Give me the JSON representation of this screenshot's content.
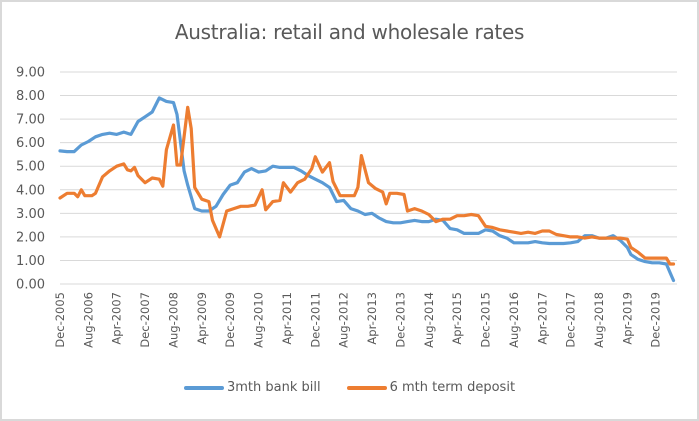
{
  "chart_data": {
    "type": "line",
    "title": "Australia: retail and wholesale rates",
    "xlabel": "",
    "ylabel": "",
    "ylim": [
      0,
      9
    ],
    "yticks": [
      "0.00",
      "1.00",
      "2.00",
      "3.00",
      "4.00",
      "5.00",
      "6.00",
      "7.00",
      "8.00",
      "9.00"
    ],
    "xticks": [
      "Dec-2005",
      "Aug-2006",
      "Apr-2007",
      "Dec-2007",
      "Aug-2008",
      "Apr-2009",
      "Dec-2009",
      "Aug-2010",
      "Apr-2011",
      "Dec-2011",
      "Aug-2012",
      "Apr-2013",
      "Dec-2013",
      "Aug-2014",
      "Apr-2015",
      "Dec-2015",
      "Aug-2016",
      "Apr-2017",
      "Dec-2017",
      "Aug-2018",
      "Apr-2019",
      "Dec-2019"
    ],
    "grid": true,
    "legend_position": "bottom",
    "x_start": "Dec-2005",
    "x_end": "Jun-2020",
    "frequency": "monthly (sampled)",
    "series": [
      {
        "name": "3mth bank bill",
        "color": "#5b9bd5",
        "points": [
          [
            "Dec-2005",
            5.65
          ],
          [
            "Feb-2006",
            5.62
          ],
          [
            "Apr-2006",
            5.62
          ],
          [
            "Jun-2006",
            5.9
          ],
          [
            "Aug-2006",
            6.05
          ],
          [
            "Oct-2006",
            6.25
          ],
          [
            "Dec-2006",
            6.35
          ],
          [
            "Feb-2007",
            6.4
          ],
          [
            "Apr-2007",
            6.35
          ],
          [
            "Jun-2007",
            6.45
          ],
          [
            "Aug-2007",
            6.35
          ],
          [
            "Oct-2007",
            6.9
          ],
          [
            "Dec-2007",
            7.1
          ],
          [
            "Feb-2008",
            7.3
          ],
          [
            "Apr-2008",
            7.9
          ],
          [
            "Jun-2008",
            7.75
          ],
          [
            "Aug-2008",
            7.7
          ],
          [
            "Sep-2008",
            7.2
          ],
          [
            "Oct-2008",
            6.0
          ],
          [
            "Nov-2008",
            4.8
          ],
          [
            "Dec-2008",
            4.2
          ],
          [
            "Feb-2009",
            3.2
          ],
          [
            "Apr-2009",
            3.1
          ],
          [
            "Jun-2009",
            3.1
          ],
          [
            "Aug-2009",
            3.3
          ],
          [
            "Oct-2009",
            3.8
          ],
          [
            "Dec-2009",
            4.2
          ],
          [
            "Feb-2010",
            4.3
          ],
          [
            "Apr-2010",
            4.75
          ],
          [
            "Jun-2010",
            4.9
          ],
          [
            "Aug-2010",
            4.75
          ],
          [
            "Oct-2010",
            4.8
          ],
          [
            "Dec-2010",
            5.0
          ],
          [
            "Feb-2011",
            4.95
          ],
          [
            "Apr-2011",
            4.95
          ],
          [
            "Jun-2011",
            4.95
          ],
          [
            "Aug-2011",
            4.8
          ],
          [
            "Oct-2011",
            4.6
          ],
          [
            "Dec-2011",
            4.45
          ],
          [
            "Feb-2012",
            4.3
          ],
          [
            "Apr-2012",
            4.1
          ],
          [
            "Jun-2012",
            3.5
          ],
          [
            "Aug-2012",
            3.55
          ],
          [
            "Oct-2012",
            3.2
          ],
          [
            "Dec-2012",
            3.1
          ],
          [
            "Feb-2013",
            2.95
          ],
          [
            "Apr-2013",
            3.0
          ],
          [
            "Jun-2013",
            2.8
          ],
          [
            "Aug-2013",
            2.65
          ],
          [
            "Oct-2013",
            2.6
          ],
          [
            "Dec-2013",
            2.6
          ],
          [
            "Feb-2014",
            2.65
          ],
          [
            "Apr-2014",
            2.7
          ],
          [
            "Jun-2014",
            2.65
          ],
          [
            "Aug-2014",
            2.65
          ],
          [
            "Oct-2014",
            2.75
          ],
          [
            "Dec-2014",
            2.7
          ],
          [
            "Feb-2015",
            2.35
          ],
          [
            "Apr-2015",
            2.3
          ],
          [
            "Jun-2015",
            2.15
          ],
          [
            "Aug-2015",
            2.15
          ],
          [
            "Oct-2015",
            2.15
          ],
          [
            "Dec-2015",
            2.3
          ],
          [
            "Feb-2016",
            2.25
          ],
          [
            "Apr-2016",
            2.05
          ],
          [
            "Jun-2016",
            1.95
          ],
          [
            "Aug-2016",
            1.75
          ],
          [
            "Oct-2016",
            1.75
          ],
          [
            "Dec-2016",
            1.75
          ],
          [
            "Feb-2017",
            1.8
          ],
          [
            "Apr-2017",
            1.75
          ],
          [
            "Jun-2017",
            1.72
          ],
          [
            "Aug-2017",
            1.72
          ],
          [
            "Oct-2017",
            1.72
          ],
          [
            "Dec-2017",
            1.75
          ],
          [
            "Feb-2018",
            1.8
          ],
          [
            "Apr-2018",
            2.05
          ],
          [
            "Jun-2018",
            2.05
          ],
          [
            "Aug-2018",
            1.95
          ],
          [
            "Oct-2018",
            1.95
          ],
          [
            "Dec-2018",
            2.05
          ],
          [
            "Feb-2019",
            1.85
          ],
          [
            "Apr-2019",
            1.55
          ],
          [
            "May-2019",
            1.25
          ],
          [
            "Jul-2019",
            1.05
          ],
          [
            "Sep-2019",
            0.95
          ],
          [
            "Nov-2019",
            0.9
          ],
          [
            "Jan-2020",
            0.9
          ],
          [
            "Mar-2020",
            0.85
          ],
          [
            "Apr-2020",
            0.5
          ],
          [
            "May-2020",
            0.15
          ]
        ]
      },
      {
        "name": "6 mth term deposit",
        "color": "#ed7d31",
        "points": [
          [
            "Dec-2005",
            3.65
          ],
          [
            "Feb-2006",
            3.85
          ],
          [
            "Apr-2006",
            3.85
          ],
          [
            "May-2006",
            3.7
          ],
          [
            "Jun-2006",
            4.0
          ],
          [
            "Jul-2006",
            3.75
          ],
          [
            "Sep-2006",
            3.75
          ],
          [
            "Oct-2006",
            3.85
          ],
          [
            "Dec-2006",
            4.55
          ],
          [
            "Feb-2007",
            4.8
          ],
          [
            "Apr-2007",
            5.0
          ],
          [
            "Jun-2007",
            5.1
          ],
          [
            "Jul-2007",
            4.85
          ],
          [
            "Aug-2007",
            4.8
          ],
          [
            "Sep-2007",
            4.95
          ],
          [
            "Oct-2007",
            4.6
          ],
          [
            "Dec-2007",
            4.3
          ],
          [
            "Feb-2008",
            4.5
          ],
          [
            "Apr-2008",
            4.45
          ],
          [
            "May-2008",
            4.15
          ],
          [
            "Jun-2008",
            5.7
          ],
          [
            "Aug-2008",
            6.75
          ],
          [
            "Sep-2008",
            5.05
          ],
          [
            "Oct-2008",
            5.05
          ],
          [
            "Dec-2008",
            7.5
          ],
          [
            "Jan-2009",
            6.6
          ],
          [
            "Feb-2009",
            4.1
          ],
          [
            "Apr-2009",
            3.6
          ],
          [
            "Jun-2009",
            3.5
          ],
          [
            "Jul-2009",
            2.7
          ],
          [
            "Sep-2009",
            2.0
          ],
          [
            "Nov-2009",
            3.1
          ],
          [
            "Jan-2010",
            3.2
          ],
          [
            "Mar-2010",
            3.3
          ],
          [
            "May-2010",
            3.3
          ],
          [
            "Jul-2010",
            3.35
          ],
          [
            "Sep-2010",
            4.0
          ],
          [
            "Oct-2010",
            3.15
          ],
          [
            "Dec-2010",
            3.5
          ],
          [
            "Feb-2011",
            3.55
          ],
          [
            "Mar-2011",
            4.3
          ],
          [
            "May-2011",
            3.9
          ],
          [
            "Jul-2011",
            4.3
          ],
          [
            "Sep-2011",
            4.45
          ],
          [
            "Nov-2011",
            4.9
          ],
          [
            "Dec-2011",
            5.4
          ],
          [
            "Feb-2012",
            4.75
          ],
          [
            "Apr-2012",
            5.15
          ],
          [
            "May-2012",
            4.35
          ],
          [
            "Jul-2012",
            3.75
          ],
          [
            "Sep-2012",
            3.75
          ],
          [
            "Nov-2012",
            3.75
          ],
          [
            "Dec-2012",
            4.1
          ],
          [
            "Jan-2013",
            5.45
          ],
          [
            "Mar-2013",
            4.3
          ],
          [
            "May-2013",
            4.05
          ],
          [
            "Jul-2013",
            3.9
          ],
          [
            "Aug-2013",
            3.4
          ],
          [
            "Sep-2013",
            3.85
          ],
          [
            "Nov-2013",
            3.85
          ],
          [
            "Jan-2014",
            3.8
          ],
          [
            "Feb-2014",
            3.1
          ],
          [
            "Apr-2014",
            3.2
          ],
          [
            "Jun-2014",
            3.1
          ],
          [
            "Aug-2014",
            2.95
          ],
          [
            "Oct-2014",
            2.65
          ],
          [
            "Dec-2014",
            2.75
          ],
          [
            "Feb-2015",
            2.75
          ],
          [
            "Apr-2015",
            2.9
          ],
          [
            "Jun-2015",
            2.9
          ],
          [
            "Aug-2015",
            2.95
          ],
          [
            "Oct-2015",
            2.9
          ],
          [
            "Dec-2015",
            2.45
          ],
          [
            "Feb-2016",
            2.4
          ],
          [
            "Apr-2016",
            2.3
          ],
          [
            "Jun-2016",
            2.25
          ],
          [
            "Aug-2016",
            2.2
          ],
          [
            "Oct-2016",
            2.15
          ],
          [
            "Dec-2016",
            2.2
          ],
          [
            "Feb-2017",
            2.15
          ],
          [
            "Apr-2017",
            2.25
          ],
          [
            "Jun-2017",
            2.25
          ],
          [
            "Aug-2017",
            2.1
          ],
          [
            "Oct-2017",
            2.05
          ],
          [
            "Dec-2017",
            2.0
          ],
          [
            "Feb-2018",
            2.0
          ],
          [
            "Apr-2018",
            1.95
          ],
          [
            "Jun-2018",
            2.0
          ],
          [
            "Aug-2018",
            1.95
          ],
          [
            "Oct-2018",
            1.95
          ],
          [
            "Dec-2018",
            1.95
          ],
          [
            "Feb-2019",
            1.95
          ],
          [
            "Apr-2019",
            1.9
          ],
          [
            "May-2019",
            1.55
          ],
          [
            "Jul-2019",
            1.35
          ],
          [
            "Sep-2019",
            1.1
          ],
          [
            "Nov-2019",
            1.1
          ],
          [
            "Jan-2020",
            1.1
          ],
          [
            "Mar-2020",
            1.1
          ],
          [
            "Apr-2020",
            0.85
          ],
          [
            "May-2020",
            0.85
          ]
        ]
      }
    ]
  },
  "legend": {
    "items": [
      {
        "label": "3mth bank bill",
        "color": "#5b9bd5"
      },
      {
        "label": "6 mth term deposit",
        "color": "#ed7d31"
      }
    ]
  }
}
